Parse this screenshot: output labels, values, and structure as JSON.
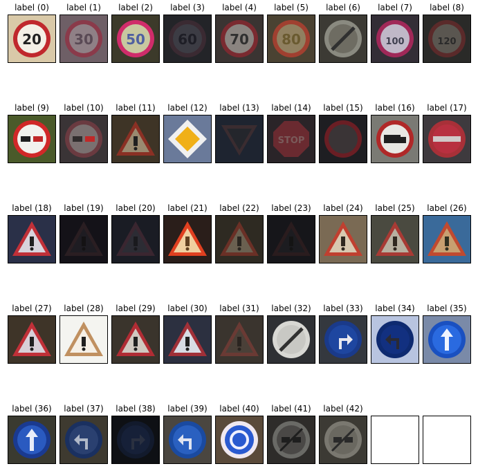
{
  "items": [
    {
      "label": "label (0)",
      "kind": "speed",
      "text": "20",
      "bg": "#d9c9a8",
      "ring": "#c0282d",
      "face": "#f4f0e6",
      "ink": "#222222"
    },
    {
      "label": "label (1)",
      "kind": "speed",
      "text": "30",
      "bg": "#6e5f66",
      "ring": "#8a3a4a",
      "face": "#8f8086",
      "ink": "#5a4a55"
    },
    {
      "label": "label (2)",
      "kind": "speed",
      "text": "50",
      "bg": "#3c3a2a",
      "ring": "#d02c6a",
      "face": "#c8c8a0",
      "ink": "#5060a0"
    },
    {
      "label": "label (3)",
      "kind": "speed",
      "text": "60",
      "bg": "#232428",
      "ring": "#3a2a32",
      "face": "#3c3c44",
      "ink": "#1e1e26"
    },
    {
      "label": "label (4)",
      "kind": "speed",
      "text": "70",
      "bg": "#3a3432",
      "ring": "#7a2a30",
      "face": "#8a8480",
      "ink": "#303030"
    },
    {
      "label": "label (5)",
      "kind": "speed",
      "text": "80",
      "bg": "#4a4232",
      "ring": "#a04030",
      "face": "#908060",
      "ink": "#6a5a30"
    },
    {
      "label": "label (6)",
      "kind": "end",
      "text": "",
      "bg": "#3c3a34",
      "ring": "#8a8a80",
      "face": "#6e6c62",
      "ink": "#303030"
    },
    {
      "label": "label (7)",
      "kind": "speed",
      "text": "100",
      "bg": "#332e36",
      "ring": "#a02858",
      "face": "#c0b8c8",
      "ink": "#404050"
    },
    {
      "label": "label (8)",
      "kind": "speed",
      "text": "120",
      "bg": "#2a2a28",
      "ring": "#5a2a2a",
      "face": "#5a5650",
      "ink": "#2a2a2a"
    },
    {
      "label": "label (9)",
      "kind": "nopass",
      "text": "",
      "bg": "#4a5a2a",
      "ring": "#d02828",
      "face": "#f2f2ee",
      "ink": "#202020"
    },
    {
      "label": "label (10)",
      "kind": "nopass",
      "text": "",
      "bg": "#3a3436",
      "ring": "#6a3a40",
      "face": "#7a7070",
      "ink": "#302c2c"
    },
    {
      "label": "label (11)",
      "kind": "tri",
      "text": "",
      "bg": "#3e3426",
      "ring": "#8a3024",
      "face": "#9a8a70",
      "ink": "#202020"
    },
    {
      "label": "label (12)",
      "kind": "diamond",
      "text": "",
      "bg": "#6a7a9a",
      "ring": "#f0f0f0",
      "face": "#f0b018",
      "ink": "#c03030"
    },
    {
      "label": "label (13)",
      "kind": "yield",
      "text": "",
      "bg": "#1e2430",
      "ring": "#3a2c30",
      "face": "#24262c",
      "ink": "#1a1a1e"
    },
    {
      "label": "label (14)",
      "kind": "stop",
      "text": "STOP",
      "bg": "#2a2428",
      "ring": "#6a2a30",
      "face": "#6a2a30",
      "ink": "#7a5a5a"
    },
    {
      "label": "label (15)",
      "kind": "novehicle",
      "text": "",
      "bg": "#1e1e22",
      "ring": "#6a1e24",
      "face": "#3a3436",
      "ink": "#202020"
    },
    {
      "label": "label (16)",
      "kind": "truck",
      "text": "",
      "bg": "#7a7a74",
      "ring": "#b02828",
      "face": "#e8e8e4",
      "ink": "#202020"
    },
    {
      "label": "label (17)",
      "kind": "noentry",
      "text": "",
      "bg": "#3e3a3e",
      "ring": "#a83038",
      "face": "#b83040",
      "ink": "#d0c8c8"
    },
    {
      "label": "label (18)",
      "kind": "tri",
      "text": "",
      "bg": "#2a3048",
      "ring": "#c03038",
      "face": "#d8d4dc",
      "ink": "#202020"
    },
    {
      "label": "label (19)",
      "kind": "tri",
      "text": "",
      "bg": "#141218",
      "ring": "#2a1e22",
      "face": "#1e1c22",
      "ink": "#141214"
    },
    {
      "label": "label (20)",
      "kind": "tri",
      "text": "",
      "bg": "#1a1c24",
      "ring": "#3a2630",
      "face": "#2c2c34",
      "ink": "#1a1a1e"
    },
    {
      "label": "label (21)",
      "kind": "tri",
      "text": "",
      "bg": "#2a1e1a",
      "ring": "#e04020",
      "face": "#f0d0a0",
      "ink": "#604020"
    },
    {
      "label": "label (22)",
      "kind": "tri",
      "text": "",
      "bg": "#2e2a22",
      "ring": "#6a3026",
      "face": "#6a6050",
      "ink": "#2a2620"
    },
    {
      "label": "label (23)",
      "kind": "tri",
      "text": "",
      "bg": "#16161a",
      "ring": "#2a1c1e",
      "face": "#1c1c20",
      "ink": "#141414"
    },
    {
      "label": "label (24)",
      "kind": "tri",
      "text": "",
      "bg": "#7a6a54",
      "ring": "#c04030",
      "face": "#d8c8b0",
      "ink": "#302820"
    },
    {
      "label": "label (25)",
      "kind": "tri",
      "text": "",
      "bg": "#4a4a40",
      "ring": "#a83a34",
      "face": "#b8b0a0",
      "ink": "#302820"
    },
    {
      "label": "label (26)",
      "kind": "tri",
      "text": "",
      "bg": "#3a6a9a",
      "ring": "#c04a30",
      "face": "#c8a070",
      "ink": "#303020"
    },
    {
      "label": "label (27)",
      "kind": "tri",
      "text": "",
      "bg": "#3e3428",
      "ring": "#c03038",
      "face": "#d8d0d8",
      "ink": "#202020"
    },
    {
      "label": "label (28)",
      "kind": "tri",
      "text": "",
      "bg": "#f4f4f0",
      "ring": "#c09060",
      "face": "#f6f0e6",
      "ink": "#202020"
    },
    {
      "label": "label (29)",
      "kind": "tri",
      "text": "",
      "bg": "#3a342c",
      "ring": "#b02c34",
      "face": "#d0c8c0",
      "ink": "#202020"
    },
    {
      "label": "label (30)",
      "kind": "snow",
      "text": "",
      "bg": "#2c3040",
      "ring": "#a03038",
      "face": "#d8dce4",
      "ink": "#202020"
    },
    {
      "label": "label (31)",
      "kind": "tri",
      "text": "",
      "bg": "#3a342e",
      "ring": "#6a3a34",
      "face": "#4a4038",
      "ink": "#2a2420"
    },
    {
      "label": "label (32)",
      "kind": "endall",
      "text": "",
      "bg": "#2e3034",
      "ring": "#d8d8d4",
      "face": "#c8c8c4",
      "ink": "#303030"
    },
    {
      "label": "label (33)",
      "kind": "blue_right",
      "text": "",
      "bg": "#34383e",
      "ring": "#1a3a8a",
      "face": "#1e46a0",
      "ink": "#e8e8f0"
    },
    {
      "label": "label (34)",
      "kind": "blue_left",
      "text": "",
      "bg": "#b8c4e0",
      "ring": "#0e2a70",
      "face": "#123080",
      "ink": "#2a2a34"
    },
    {
      "label": "label (35)",
      "kind": "blue_up",
      "text": "",
      "bg": "#7a8aa8",
      "ring": "#1a50c0",
      "face": "#2a6ae0",
      "ink": "#f0f4ff"
    },
    {
      "label": "label (36)",
      "kind": "blue_up",
      "text": "",
      "bg": "#3a3a30",
      "ring": "#1a3a90",
      "face": "#2a5ac0",
      "ink": "#e8ecf8"
    },
    {
      "label": "label (37)",
      "kind": "blue_left",
      "text": "",
      "bg": "#3e3a30",
      "ring": "#1a3060",
      "face": "#2a4070",
      "ink": "#b0b8c8"
    },
    {
      "label": "label (38)",
      "kind": "blue_right",
      "text": "",
      "bg": "#0e1014",
      "ring": "#121a2c",
      "face": "#162038",
      "ink": "#2a3040"
    },
    {
      "label": "label (39)",
      "kind": "blue_left",
      "text": "",
      "bg": "#4a4640",
      "ring": "#1a4aa0",
      "face": "#2a60c0",
      "ink": "#e0e4f0"
    },
    {
      "label": "label (40)",
      "kind": "round",
      "text": "",
      "bg": "#5a4a3a",
      "ring": "#f0e8f0",
      "face": "#2a5ad0",
      "ink": "#f0f0ff"
    },
    {
      "label": "label (41)",
      "kind": "endnopass",
      "text": "",
      "bg": "#2e2c2a",
      "ring": "#6a6a66",
      "face": "#4a4846",
      "ink": "#1e1e1e"
    },
    {
      "label": "label (42)",
      "kind": "endnopass",
      "text": "",
      "bg": "#3c3a34",
      "ring": "#7a7870",
      "face": "#6a6860",
      "ink": "#2a2a2a"
    },
    {
      "label": "",
      "kind": "empty",
      "text": "",
      "bg": "#ffffff",
      "ring": "#ffffff",
      "face": "#ffffff",
      "ink": "#ffffff"
    },
    {
      "label": "",
      "kind": "empty",
      "text": "",
      "bg": "#ffffff",
      "ring": "#ffffff",
      "face": "#ffffff",
      "ink": "#ffffff"
    }
  ]
}
